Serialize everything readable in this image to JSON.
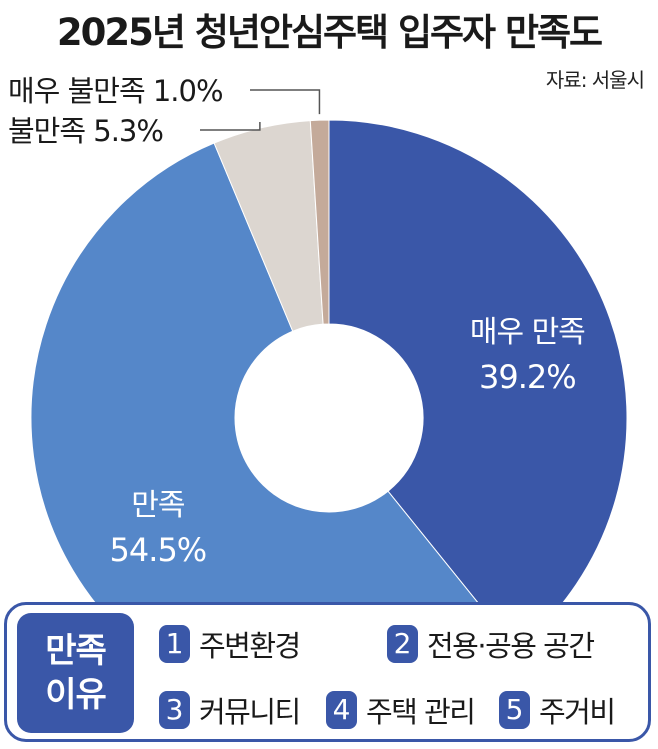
{
  "title": "2025년 청년안심주택 입주자 만족도",
  "source": "자료: 서울시",
  "chart_data": {
    "type": "pie",
    "title": "2025년 청년안심주택 입주자 만족도",
    "slices": [
      {
        "label": "매우 만족",
        "value": 39.2,
        "value_label": "39.2%",
        "color": "#3a57a8"
      },
      {
        "label": "만족",
        "value": 54.5,
        "value_label": "54.5%",
        "color": "#5587c9"
      },
      {
        "label": "불만족",
        "value": 5.3,
        "value_label": "5.3%",
        "color": "#dcd6d0"
      },
      {
        "label": "매우 불만족",
        "value": 1.0,
        "value_label": "1.0%",
        "color": "#c4aa9a"
      }
    ]
  },
  "legend": {
    "head": [
      "만족",
      "이유"
    ],
    "reasons": [
      {
        "num": "1",
        "text": "주변환경"
      },
      {
        "num": "2",
        "text": "전용·공용 공간"
      },
      {
        "num": "3",
        "text": "커뮤니티"
      },
      {
        "num": "4",
        "text": "주택 관리"
      },
      {
        "num": "5",
        "text": "주거비"
      }
    ]
  }
}
